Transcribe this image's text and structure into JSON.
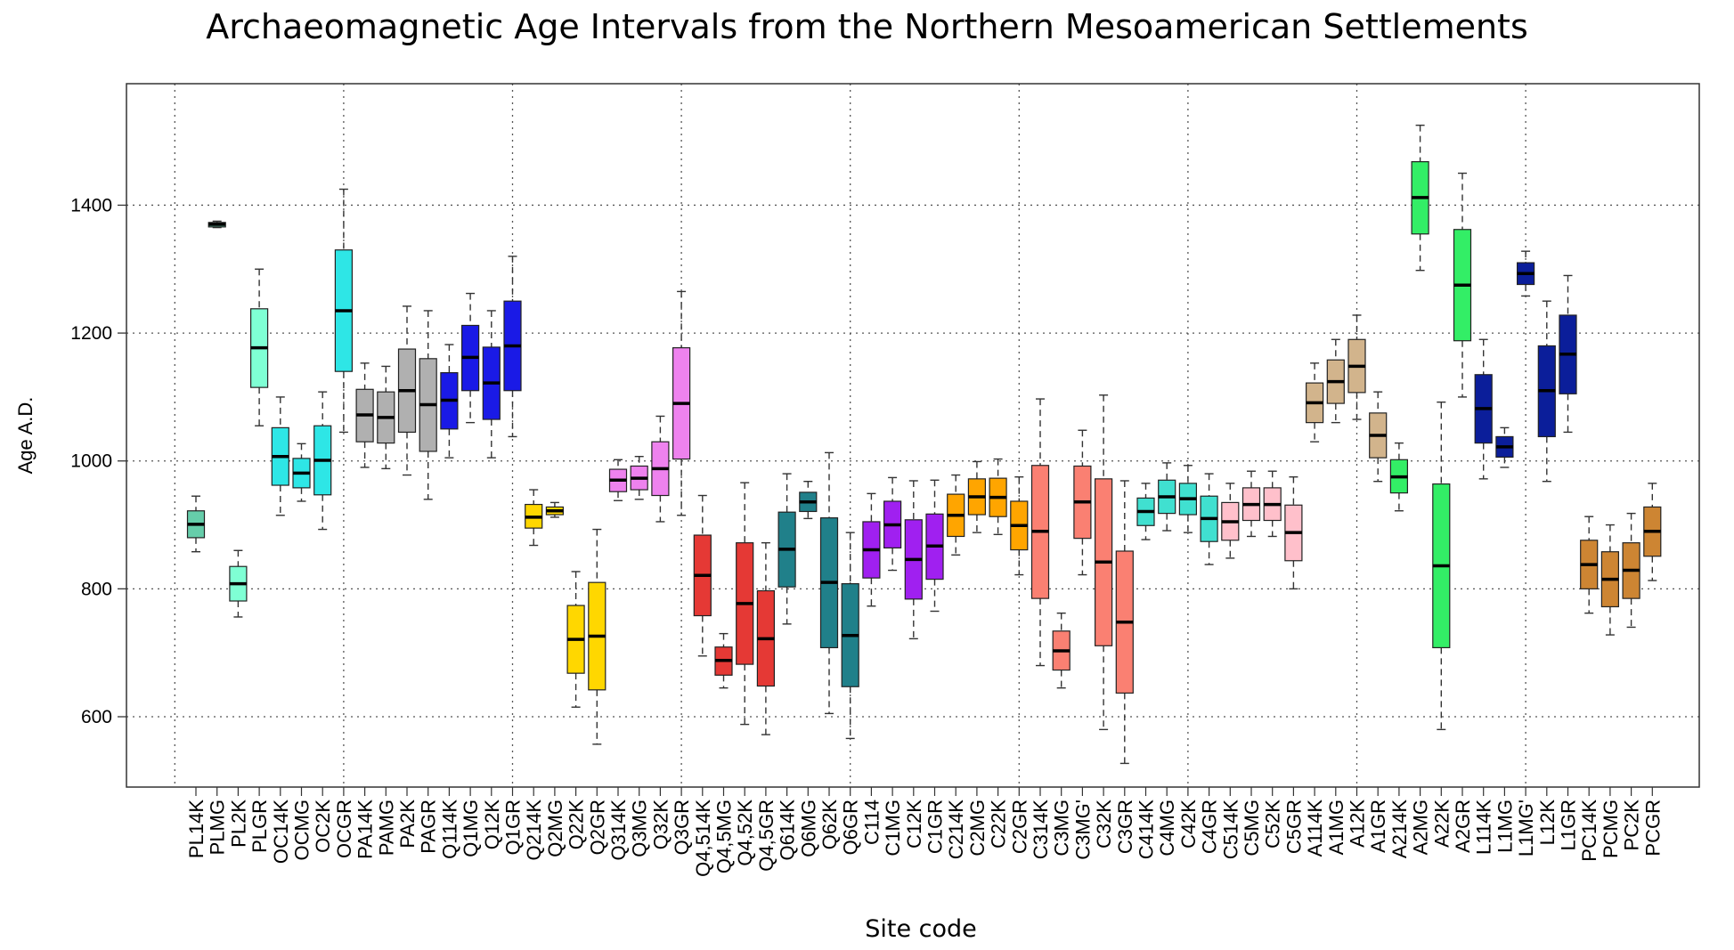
{
  "chart_data": {
    "type": "boxplot",
    "title": "Archaeomagnetic Age Intervals from the Northern Mesoamerican Settlements",
    "xlabel": "Site code",
    "ylabel": "Age A.D.",
    "ylim": [
      490,
      1590
    ],
    "yticks": [
      600,
      800,
      1000,
      1200,
      1400
    ],
    "grid": "dotted",
    "categories": [
      "PL14K",
      "PLMG",
      "PL2K",
      "PLGR",
      "OC14K",
      "OCMG",
      "OC2K",
      "OCGR",
      "PA14K",
      "PAMG",
      "PA2K",
      "PAGR",
      "Q114K",
      "Q1MG",
      "Q12K",
      "Q1GR",
      "Q214K",
      "Q2MG",
      "Q22K",
      "Q2GR",
      "Q314K",
      "Q3MG",
      "Q32K",
      "Q3GR",
      "Q4,514K",
      "Q4,5MG",
      "Q4,52K",
      "Q4,5GR",
      "Q614K",
      "Q6MG",
      "Q62K",
      "Q6GR",
      "C114",
      "C1MG",
      "C12K",
      "C1GR",
      "C214K",
      "C2MG",
      "C22K",
      "C2GR",
      "C314K",
      "C3MG",
      "C3MG'",
      "C32K",
      "C3GR",
      "C414K",
      "C4MG",
      "C42K",
      "C4GR",
      "C514K",
      "C5MG",
      "C52K",
      "C5GR",
      "A114K",
      "A1MG",
      "A12K",
      "A1GR",
      "A214K",
      "A2MG",
      "A22K",
      "A2GR",
      "L114K",
      "L1MG",
      "L1MG'",
      "L12K",
      "L1GR",
      "PC14K",
      "PCMG",
      "PC2K",
      "PCGR"
    ],
    "boxes": [
      {
        "wlo": 858,
        "q1": 880,
        "med": 901,
        "q3": 922,
        "whi": 945,
        "color": "#66CDAA"
      },
      {
        "wlo": 1365,
        "q1": 1366,
        "med": 1370,
        "q3": 1373,
        "whi": 1375,
        "color": "#66CDAA"
      },
      {
        "wlo": 756,
        "q1": 781,
        "med": 808,
        "q3": 835,
        "whi": 860,
        "color": "#7FFFD4"
      },
      {
        "wlo": 1055,
        "q1": 1115,
        "med": 1177,
        "q3": 1238,
        "whi": 1300,
        "color": "#7FFFD4"
      },
      {
        "wlo": 915,
        "q1": 962,
        "med": 1007,
        "q3": 1052,
        "whi": 1100,
        "color": "#2EE6E6"
      },
      {
        "wlo": 937,
        "q1": 958,
        "med": 981,
        "q3": 1004,
        "whi": 1027,
        "color": "#2EE6E6"
      },
      {
        "wlo": 893,
        "q1": 947,
        "med": 1001,
        "q3": 1055,
        "whi": 1108,
        "color": "#2EE6E6"
      },
      {
        "wlo": 1045,
        "q1": 1140,
        "med": 1235,
        "q3": 1330,
        "whi": 1425,
        "color": "#2EE6E6"
      },
      {
        "wlo": 990,
        "q1": 1030,
        "med": 1072,
        "q3": 1112,
        "whi": 1153,
        "color": "#B0B0B0"
      },
      {
        "wlo": 988,
        "q1": 1028,
        "med": 1068,
        "q3": 1108,
        "whi": 1148,
        "color": "#B0B0B0"
      },
      {
        "wlo": 978,
        "q1": 1045,
        "med": 1110,
        "q3": 1175,
        "whi": 1242,
        "color": "#B0B0B0"
      },
      {
        "wlo": 940,
        "q1": 1015,
        "med": 1088,
        "q3": 1160,
        "whi": 1235,
        "color": "#B0B0B0"
      },
      {
        "wlo": 1005,
        "q1": 1050,
        "med": 1095,
        "q3": 1138,
        "whi": 1182,
        "color": "#1A1AE6"
      },
      {
        "wlo": 1060,
        "q1": 1110,
        "med": 1162,
        "q3": 1212,
        "whi": 1262,
        "color": "#1A1AE6"
      },
      {
        "wlo": 1005,
        "q1": 1065,
        "med": 1122,
        "q3": 1178,
        "whi": 1235,
        "color": "#1A1AE6"
      },
      {
        "wlo": 1038,
        "q1": 1110,
        "med": 1180,
        "q3": 1250,
        "whi": 1320,
        "color": "#1A1AE6"
      },
      {
        "wlo": 868,
        "q1": 895,
        "med": 912,
        "q3": 932,
        "whi": 955,
        "color": "#FFD700"
      },
      {
        "wlo": 912,
        "q1": 916,
        "med": 922,
        "q3": 928,
        "whi": 935,
        "color": "#FFD700"
      },
      {
        "wlo": 615,
        "q1": 668,
        "med": 721,
        "q3": 774,
        "whi": 827,
        "color": "#FFD700"
      },
      {
        "wlo": 557,
        "q1": 642,
        "med": 726,
        "q3": 810,
        "whi": 893,
        "color": "#FFD700"
      },
      {
        "wlo": 938,
        "q1": 952,
        "med": 970,
        "q3": 987,
        "whi": 1002,
        "color": "#EE82EE"
      },
      {
        "wlo": 940,
        "q1": 955,
        "med": 973,
        "q3": 992,
        "whi": 1007,
        "color": "#EE82EE"
      },
      {
        "wlo": 905,
        "q1": 946,
        "med": 988,
        "q3": 1030,
        "whi": 1070,
        "color": "#EE82EE"
      },
      {
        "wlo": 915,
        "q1": 1003,
        "med": 1090,
        "q3": 1177,
        "whi": 1265,
        "color": "#EE82EE"
      },
      {
        "wlo": 695,
        "q1": 758,
        "med": 821,
        "q3": 884,
        "whi": 946,
        "color": "#E53935"
      },
      {
        "wlo": 645,
        "q1": 665,
        "med": 688,
        "q3": 709,
        "whi": 730,
        "color": "#E53935"
      },
      {
        "wlo": 588,
        "q1": 682,
        "med": 777,
        "q3": 872,
        "whi": 966,
        "color": "#E53935"
      },
      {
        "wlo": 572,
        "q1": 648,
        "med": 722,
        "q3": 797,
        "whi": 872,
        "color": "#E53935"
      },
      {
        "wlo": 745,
        "q1": 803,
        "med": 862,
        "q3": 920,
        "whi": 980,
        "color": "#20808A"
      },
      {
        "wlo": 910,
        "q1": 921,
        "med": 936,
        "q3": 951,
        "whi": 968,
        "color": "#20808A"
      },
      {
        "wlo": 605,
        "q1": 708,
        "med": 810,
        "q3": 911,
        "whi": 1013,
        "color": "#20808A"
      },
      {
        "wlo": 566,
        "q1": 647,
        "med": 727,
        "q3": 808,
        "whi": 888,
        "color": "#20808A"
      },
      {
        "wlo": 773,
        "q1": 817,
        "med": 861,
        "q3": 905,
        "whi": 949,
        "color": "#A020F0"
      },
      {
        "wlo": 829,
        "q1": 864,
        "med": 900,
        "q3": 937,
        "whi": 974,
        "color": "#A020F0"
      },
      {
        "wlo": 722,
        "q1": 784,
        "med": 846,
        "q3": 908,
        "whi": 969,
        "color": "#A020F0"
      },
      {
        "wlo": 765,
        "q1": 815,
        "med": 867,
        "q3": 917,
        "whi": 970,
        "color": "#A020F0"
      },
      {
        "wlo": 853,
        "q1": 882,
        "med": 915,
        "q3": 948,
        "whi": 978,
        "color": "#FFA500"
      },
      {
        "wlo": 888,
        "q1": 916,
        "med": 944,
        "q3": 972,
        "whi": 999,
        "color": "#FFA500"
      },
      {
        "wlo": 885,
        "q1": 913,
        "med": 943,
        "q3": 973,
        "whi": 1003,
        "color": "#FFA500"
      },
      {
        "wlo": 822,
        "q1": 861,
        "med": 899,
        "q3": 937,
        "whi": 975,
        "color": "#FFA500"
      },
      {
        "wlo": 680,
        "q1": 785,
        "med": 890,
        "q3": 993,
        "whi": 1097,
        "color": "#FA8072"
      },
      {
        "wlo": 645,
        "q1": 673,
        "med": 703,
        "q3": 734,
        "whi": 762,
        "color": "#FA8072"
      },
      {
        "wlo": 822,
        "q1": 879,
        "med": 936,
        "q3": 992,
        "whi": 1048,
        "color": "#FA8072"
      },
      {
        "wlo": 580,
        "q1": 711,
        "med": 842,
        "q3": 972,
        "whi": 1103,
        "color": "#FA8072"
      },
      {
        "wlo": 527,
        "q1": 637,
        "med": 748,
        "q3": 859,
        "whi": 969,
        "color": "#FA8072"
      },
      {
        "wlo": 877,
        "q1": 899,
        "med": 921,
        "q3": 942,
        "whi": 965,
        "color": "#40E0D0"
      },
      {
        "wlo": 891,
        "q1": 918,
        "med": 944,
        "q3": 970,
        "whi": 997,
        "color": "#40E0D0"
      },
      {
        "wlo": 888,
        "q1": 916,
        "med": 941,
        "q3": 965,
        "whi": 993,
        "color": "#40E0D0"
      },
      {
        "wlo": 838,
        "q1": 874,
        "med": 910,
        "q3": 945,
        "whi": 980,
        "color": "#40E0D0"
      },
      {
        "wlo": 848,
        "q1": 876,
        "med": 905,
        "q3": 935,
        "whi": 965,
        "color": "#FFC0CB"
      },
      {
        "wlo": 882,
        "q1": 907,
        "med": 932,
        "q3": 958,
        "whi": 984,
        "color": "#FFC0CB"
      },
      {
        "wlo": 882,
        "q1": 907,
        "med": 932,
        "q3": 958,
        "whi": 984,
        "color": "#FFC0CB"
      },
      {
        "wlo": 800,
        "q1": 844,
        "med": 888,
        "q3": 931,
        "whi": 975,
        "color": "#FFC0CB"
      },
      {
        "wlo": 1030,
        "q1": 1060,
        "med": 1091,
        "q3": 1122,
        "whi": 1153,
        "color": "#D2B48C"
      },
      {
        "wlo": 1060,
        "q1": 1090,
        "med": 1124,
        "q3": 1158,
        "whi": 1190,
        "color": "#D2B48C"
      },
      {
        "wlo": 1065,
        "q1": 1107,
        "med": 1148,
        "q3": 1190,
        "whi": 1228,
        "color": "#D2B48C"
      },
      {
        "wlo": 968,
        "q1": 1005,
        "med": 1040,
        "q3": 1075,
        "whi": 1108,
        "color": "#D2B48C"
      },
      {
        "wlo": 922,
        "q1": 950,
        "med": 975,
        "q3": 1002,
        "whi": 1028,
        "color": "#33EE66"
      },
      {
        "wlo": 1298,
        "q1": 1355,
        "med": 1412,
        "q3": 1468,
        "whi": 1525,
        "color": "#33EE66"
      },
      {
        "wlo": 580,
        "q1": 708,
        "med": 836,
        "q3": 964,
        "whi": 1092,
        "color": "#33EE66"
      },
      {
        "wlo": 1100,
        "q1": 1188,
        "med": 1275,
        "q3": 1362,
        "whi": 1450,
        "color": "#33EE66"
      },
      {
        "wlo": 972,
        "q1": 1028,
        "med": 1082,
        "q3": 1135,
        "whi": 1190,
        "color": "#0B1E9A"
      },
      {
        "wlo": 990,
        "q1": 1006,
        "med": 1022,
        "q3": 1038,
        "whi": 1052,
        "color": "#0B1E9A"
      },
      {
        "wlo": 1258,
        "q1": 1276,
        "med": 1293,
        "q3": 1310,
        "whi": 1328,
        "color": "#0B1E9A"
      },
      {
        "wlo": 968,
        "q1": 1038,
        "med": 1110,
        "q3": 1180,
        "whi": 1250,
        "color": "#0B1E9A"
      },
      {
        "wlo": 1045,
        "q1": 1105,
        "med": 1167,
        "q3": 1228,
        "whi": 1290,
        "color": "#0B1E9A"
      },
      {
        "wlo": 762,
        "q1": 800,
        "med": 838,
        "q3": 876,
        "whi": 913,
        "color": "#CD8533"
      },
      {
        "wlo": 728,
        "q1": 772,
        "med": 815,
        "q3": 858,
        "whi": 900,
        "color": "#CD8533"
      },
      {
        "wlo": 740,
        "q1": 785,
        "med": 829,
        "q3": 872,
        "whi": 918,
        "color": "#CD8533"
      },
      {
        "wlo": 813,
        "q1": 851,
        "med": 890,
        "q3": 928,
        "whi": 965,
        "color": "#CD8533"
      }
    ]
  }
}
